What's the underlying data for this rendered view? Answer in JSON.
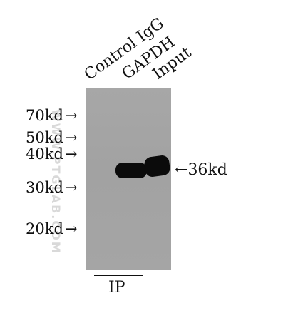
{
  "lanes": [
    "Control IgG",
    "GAPDH",
    "Input"
  ],
  "markers": [
    {
      "label": "70kd",
      "arrow": "→"
    },
    {
      "label": "50kd",
      "arrow": "→"
    },
    {
      "label": "40kd",
      "arrow": "→"
    },
    {
      "label": "30kd",
      "arrow": "→"
    },
    {
      "label": "20kd",
      "arrow": "→"
    }
  ],
  "band": {
    "arrow": "←",
    "label": "36kd"
  },
  "watermark": "WWW.PTGLAB.COM",
  "ip_label": "IP",
  "colors": {
    "membrane": "#a5a5a5",
    "band": "#0b0b0b"
  }
}
